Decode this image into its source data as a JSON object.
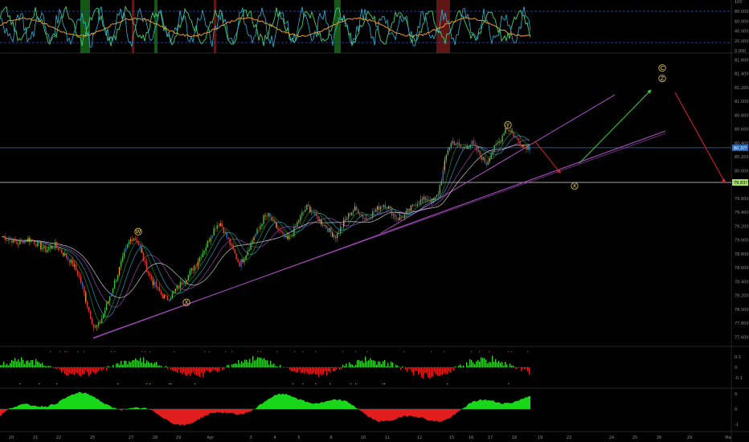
{
  "chart_data": {
    "type": "candlestick",
    "title": "",
    "colors": {
      "up": "#3fbf3f",
      "down": "#e23b3b",
      "trendline": "#b04fc8",
      "arrow_up": "#39d439",
      "arrow_down": "#e02424",
      "wave_label": "#f5d142",
      "hline": "#dcdcdc",
      "last_price_line": "#2c6fbf"
    },
    "price_axis": {
      "ylim": [
        77.5,
        81.65
      ],
      "ticks": [
        "81.600",
        "81.400",
        "81.200",
        "81.000",
        "80.800",
        "80.600",
        "80.400",
        "80.200",
        "80.000",
        "79.800",
        "79.600",
        "79.400",
        "79.200",
        "79.000",
        "78.800",
        "78.600",
        "78.400",
        "78.200",
        "78.000",
        "77.800",
        "77.600"
      ],
      "last_price_label": "80.3??",
      "last_price": 80.33,
      "level_label": "79.83?",
      "level": 79.83
    },
    "date_axis": {
      "ticks": [
        "20",
        "21",
        "22",
        "25",
        "27",
        "28",
        "29",
        "Apr",
        "3",
        "4",
        "5",
        "8",
        "10",
        "11",
        "12",
        "15",
        "16",
        "17",
        "18",
        "19",
        "22",
        "24",
        "25",
        "26",
        "29",
        "Ma"
      ]
    },
    "oscillator_axis": {
      "ticks": [
        "100",
        "80.000",
        "60.000",
        "40.000",
        "20.000",
        "0.000"
      ],
      "upper_band": 80,
      "lower_band": 20
    },
    "histogram_axis": {
      "ticks": [
        "0.1",
        "0",
        "-0.1"
      ]
    },
    "momentum_axis": {
      "ticks": [
        "0",
        "0",
        "-1"
      ]
    },
    "wave_labels": [
      {
        "text": "W",
        "price": 79.12
      },
      {
        "text": "X",
        "price": 78.1
      },
      {
        "text": "Y",
        "price": 80.66
      },
      {
        "text": "X",
        "price": 79.78
      },
      {
        "text": "C",
        "price": 81.48
      },
      {
        "text": "Z",
        "price": 81.33
      }
    ],
    "price_path": [
      79.05,
      79.02,
      79.0,
      78.95,
      78.98,
      79.02,
      79.0,
      78.95,
      78.9,
      78.85,
      78.9,
      78.93,
      78.85,
      78.78,
      78.7,
      78.6,
      78.45,
      78.2,
      77.95,
      77.72,
      77.78,
      77.95,
      78.15,
      78.35,
      78.55,
      78.75,
      78.95,
      79.05,
      78.98,
      78.75,
      78.55,
      78.4,
      78.3,
      78.2,
      78.15,
      78.2,
      78.3,
      78.38,
      78.45,
      78.55,
      78.65,
      78.78,
      78.9,
      79.05,
      79.2,
      79.25,
      79.1,
      78.95,
      78.8,
      78.65,
      78.75,
      78.9,
      79.05,
      79.15,
      79.32,
      79.35,
      79.25,
      79.15,
      79.05,
      79.0,
      79.1,
      79.25,
      79.38,
      79.48,
      79.42,
      79.32,
      79.25,
      79.18,
      79.1,
      79.05,
      79.18,
      79.3,
      79.4,
      79.45,
      79.38,
      79.3,
      79.35,
      79.42,
      79.48,
      79.52,
      79.45,
      79.35,
      79.3,
      79.35,
      79.42,
      79.5,
      79.55,
      79.58,
      79.6,
      79.55,
      79.65,
      79.95,
      80.3,
      80.42,
      80.38,
      80.32,
      80.35,
      80.4,
      80.3,
      80.2,
      80.1,
      80.25,
      80.35,
      80.45,
      80.62,
      80.58,
      80.48,
      80.4,
      80.36,
      80.33
    ]
  }
}
